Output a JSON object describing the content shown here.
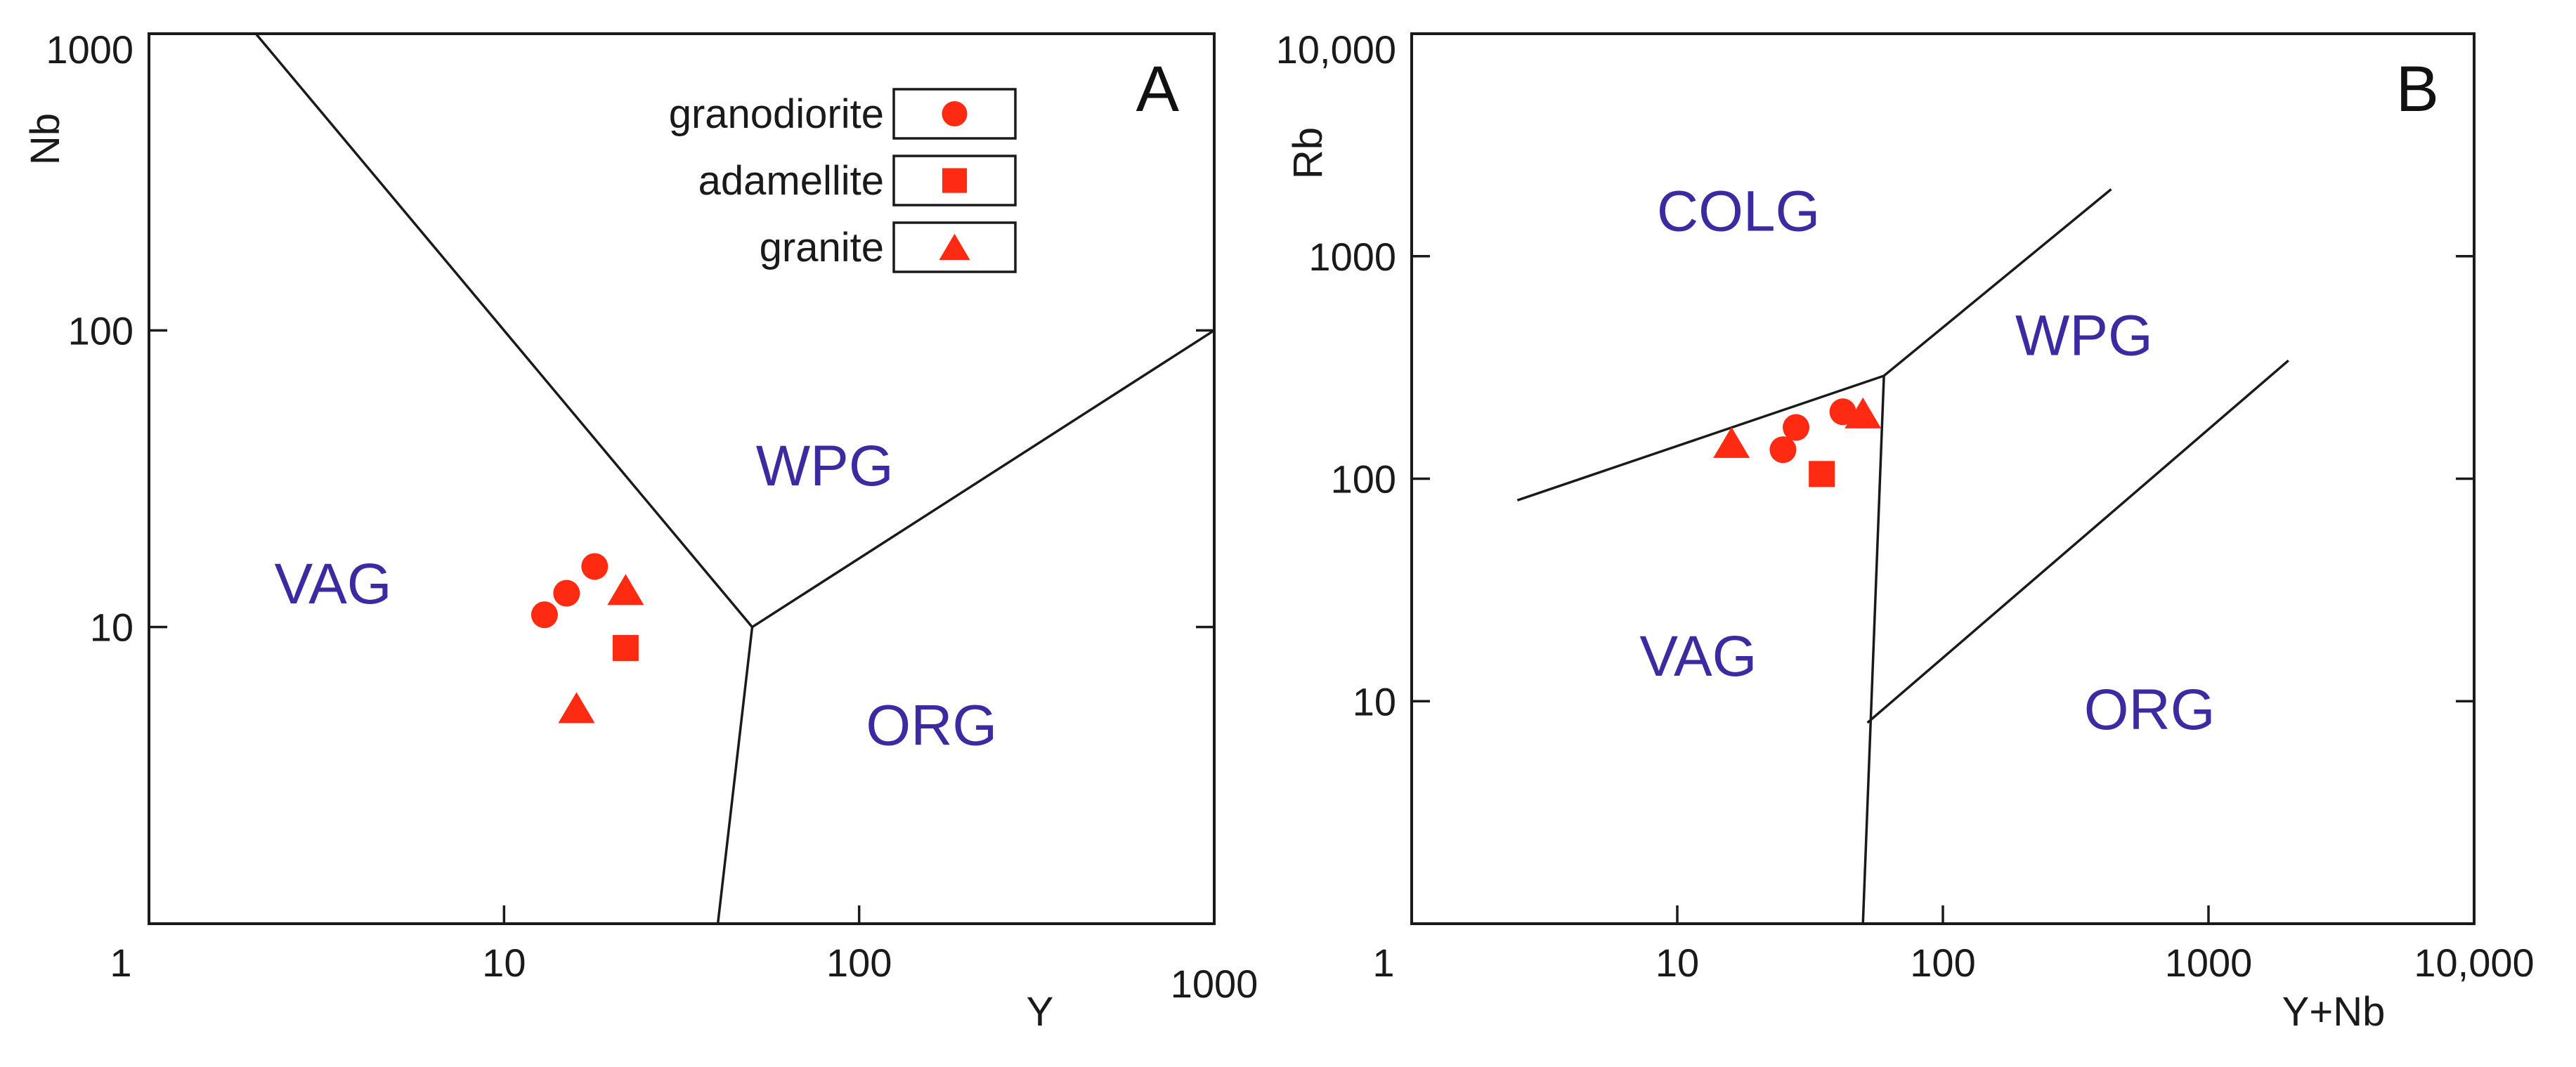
{
  "colors": {
    "marker": "#ff2a12",
    "region": "#3b2aa0",
    "axis": "#1a1a1a"
  },
  "chart_data": [
    {
      "type": "scatter",
      "panel_label": "A",
      "xlabel": "Y",
      "ylabel": "Nb",
      "xscale": "log",
      "yscale": "log",
      "xlim": [
        1,
        1000
      ],
      "ylim": [
        1,
        1000
      ],
      "x_ticks": [
        {
          "value": 1,
          "label": "1"
        },
        {
          "value": 10,
          "label": "10"
        },
        {
          "value": 100,
          "label": "100"
        },
        {
          "value": 1000,
          "label": "1000"
        }
      ],
      "y_ticks": [
        {
          "value": 10,
          "label": "10"
        },
        {
          "value": 100,
          "label": "100"
        },
        {
          "value": 1000,
          "label": "1000"
        }
      ],
      "legend": {
        "placement": "top-right",
        "entries": [
          {
            "label": "granodiorite",
            "marker": "circle"
          },
          {
            "label": "adamellite",
            "marker": "square"
          },
          {
            "label": "granite",
            "marker": "triangle"
          }
        ]
      },
      "regions": [
        {
          "label": "WPG",
          "x": 80,
          "y": 30
        },
        {
          "label": "VAG",
          "x": 3.3,
          "y": 12
        },
        {
          "label": "ORG",
          "x": 160,
          "y": 4
        }
      ],
      "boundaries": [
        [
          [
            2,
            1000
          ],
          [
            50,
            10
          ],
          [
            40,
            1
          ]
        ],
        [
          [
            50,
            10
          ],
          [
            1000,
            100
          ]
        ]
      ],
      "series": [
        {
          "name": "granodiorite",
          "marker": "circle",
          "points": [
            [
              13,
              11
            ],
            [
              15,
              13
            ],
            [
              18,
              16
            ]
          ]
        },
        {
          "name": "adamellite",
          "marker": "square",
          "points": [
            [
              22,
              8.5
            ]
          ]
        },
        {
          "name": "granite",
          "marker": "triangle",
          "points": [
            [
              22,
              13
            ],
            [
              16,
              5.2
            ]
          ]
        }
      ]
    },
    {
      "type": "scatter",
      "panel_label": "B",
      "xlabel": "Y+Nb",
      "ylabel": "Rb",
      "xscale": "log",
      "yscale": "log",
      "xlim": [
        1,
        10000
      ],
      "ylim": [
        1,
        10000
      ],
      "x_ticks": [
        {
          "value": 1,
          "label": "1"
        },
        {
          "value": 10,
          "label": "10"
        },
        {
          "value": 100,
          "label": "100"
        },
        {
          "value": 1000,
          "label": "1000"
        },
        {
          "value": 10000,
          "label": "10,000"
        }
      ],
      "y_ticks": [
        {
          "value": 10,
          "label": "10"
        },
        {
          "value": 100,
          "label": "100"
        },
        {
          "value": 1000,
          "label": "1000"
        },
        {
          "value": 10000,
          "label": "10,000"
        }
      ],
      "regions": [
        {
          "label": "COLG",
          "x": 17,
          "y": 1300
        },
        {
          "label": "WPG",
          "x": 340,
          "y": 360
        },
        {
          "label": "VAG",
          "x": 12,
          "y": 13
        },
        {
          "label": "ORG",
          "x": 600,
          "y": 7.5
        }
      ],
      "boundaries": [
        [
          [
            2.5,
            80
          ],
          [
            60,
            290
          ],
          [
            430,
            2000
          ]
        ],
        [
          [
            60,
            290
          ],
          [
            50,
            1
          ]
        ],
        [
          [
            52,
            8
          ],
          [
            2000,
            340
          ]
        ]
      ],
      "series": [
        {
          "name": "granodiorite",
          "marker": "circle",
          "points": [
            [
              25,
              135
            ],
            [
              28,
              170
            ],
            [
              42,
              200
            ]
          ]
        },
        {
          "name": "adamellite",
          "marker": "square",
          "points": [
            [
              35,
              105
            ]
          ]
        },
        {
          "name": "granite",
          "marker": "triangle",
          "points": [
            [
              16,
              140
            ],
            [
              50,
              190
            ]
          ]
        }
      ]
    }
  ]
}
